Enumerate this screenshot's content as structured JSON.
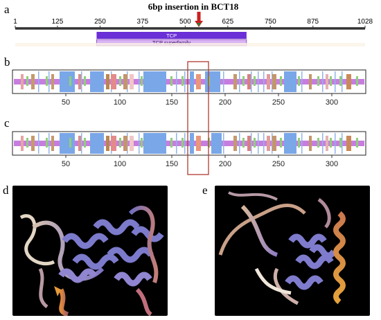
{
  "panel_labels": {
    "a": "a",
    "b": "b",
    "c": "c",
    "d": "d",
    "e": "e"
  },
  "insertion_title": "6bp insertion in BCT18",
  "scale_a": {
    "min": 1,
    "max": 1028,
    "ticks": [
      "1",
      "125",
      "250",
      "375",
      "500",
      "625",
      "750",
      "875",
      "1028"
    ],
    "insertion_position": 540
  },
  "domains": {
    "tcp_label": "TCP",
    "tcp_superfamily_label": "TCP superfamily",
    "tcp_range": [
      250,
      680
    ],
    "tcp_superfamily_range": [
      250,
      680
    ]
  },
  "track_axis": {
    "ticks": [
      "50",
      "100",
      "150",
      "200",
      "250",
      "300"
    ]
  },
  "colors": {
    "insertion_arrow": "#cc1f1f",
    "insertion_arrow_tip": "#2e7d32",
    "tcp_bar": "#6a2fd6",
    "tcp_superfamily_bar": "#d9b3f3",
    "track_base": "#c77ddf",
    "helix_block": "#7aa7e8",
    "highlight_box": "#b03a2e"
  },
  "structures": {
    "d_description_icon": "protein-ribbon-wildtype-icon",
    "e_description_icon": "protein-ribbon-mutant-icon"
  }
}
